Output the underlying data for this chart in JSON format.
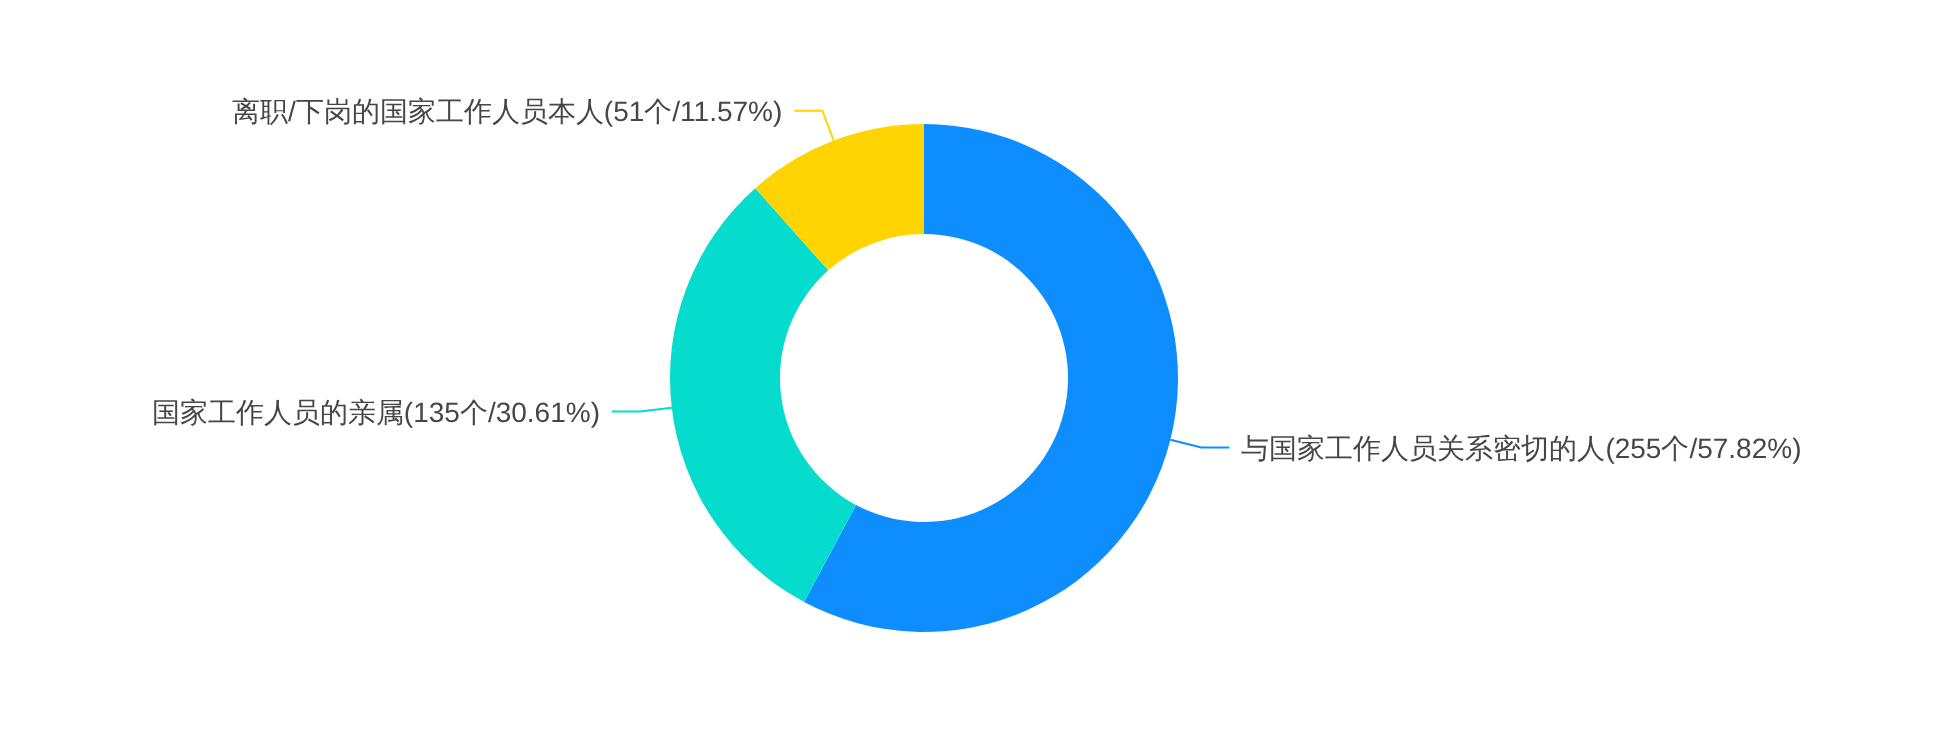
{
  "chart_data": {
    "type": "donut",
    "categories": [
      "与国家工作人员关系密切的人",
      "国家工作人员的亲属",
      "离职/下岗的国家工作人员本人"
    ],
    "values": [
      255,
      135,
      51
    ],
    "value_labels": [
      "(255个/57.82%)",
      "(135个/30.61%)",
      "(51个/11.57%)"
    ],
    "colors": [
      "#0e8efe",
      "#05dcce",
      "#ffd400"
    ]
  }
}
